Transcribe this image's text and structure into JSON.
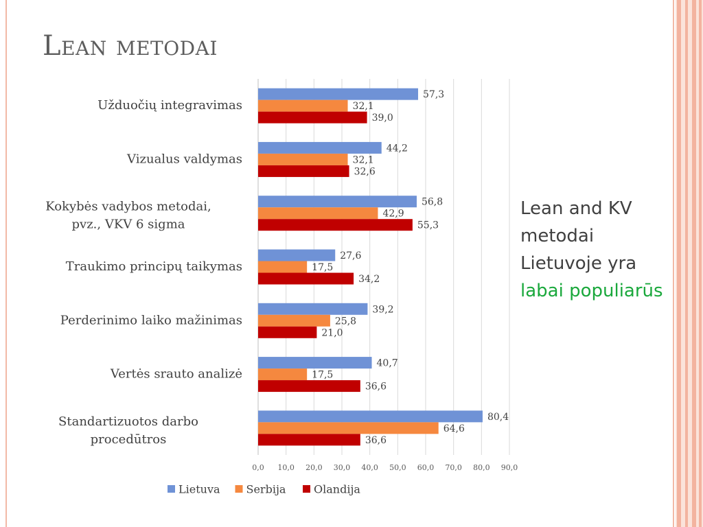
{
  "slide": {
    "title": "Lean metodai",
    "note": {
      "lines": [
        "Lean and KV",
        "metodai",
        "Lietuvoje yra"
      ],
      "highlight": "labai populiarūs",
      "highlight_color": "#1aa83c"
    }
  },
  "chart_data": {
    "type": "bar",
    "orientation": "horizontal",
    "categories": [
      "Užduočių integravimas",
      "Vizualus valdymas",
      "Kokybės vadybos metodai, pvz., VKV 6 sigma",
      "Traukimo principų taikymas",
      "Perderinimo laiko mažinimas",
      "Vertės srauto analizė",
      "Standartizuotos darbo procedūtros"
    ],
    "series": [
      {
        "name": "Lietuva",
        "color": "#6f92d6",
        "values": [
          57.3,
          44.2,
          56.8,
          27.6,
          39.2,
          40.7,
          80.4
        ]
      },
      {
        "name": "Serbija",
        "color": "#f5883f",
        "values": [
          32.1,
          32.1,
          42.9,
          17.5,
          25.8,
          17.5,
          64.6
        ]
      },
      {
        "name": "Olandija",
        "color": "#c00000",
        "values": [
          39.0,
          32.6,
          55.3,
          34.2,
          21.0,
          36.6,
          36.6
        ]
      }
    ],
    "xlim": [
      0,
      90
    ],
    "xticks": [
      0,
      10,
      20,
      30,
      40,
      50,
      60,
      70,
      80,
      90
    ],
    "grid": true,
    "legend": "bottom",
    "decimal_separator": ","
  }
}
